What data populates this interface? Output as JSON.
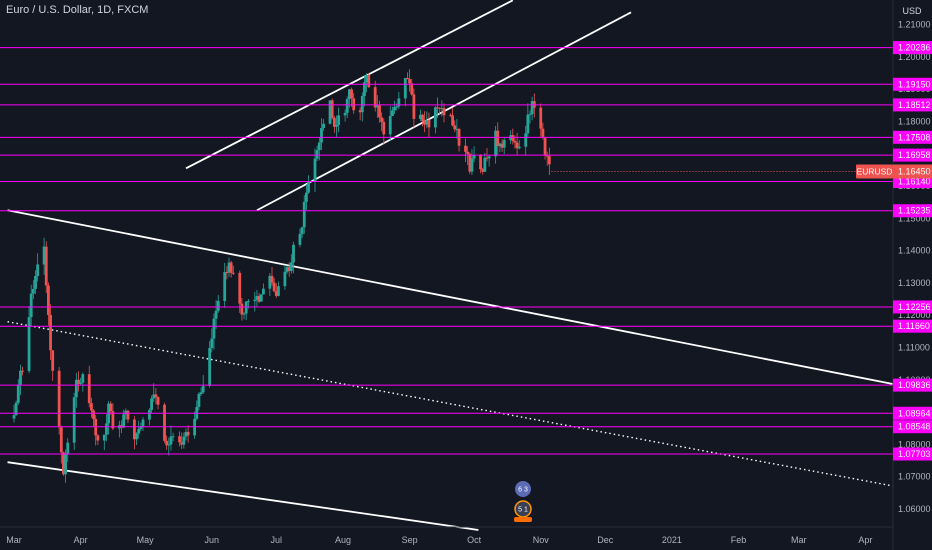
{
  "chart_data": {
    "type": "candlestick",
    "title": "Euro / U.S. Dollar, 1D, FXCM",
    "symbol": "EURUSD",
    "last_price": 1.1645,
    "currency": "USD",
    "ylim": [
      1.0535,
      1.2176
    ],
    "y_ticks": [
      1.21,
      1.2,
      1.19,
      1.18,
      1.17,
      1.16,
      1.15,
      1.14,
      1.13,
      1.12,
      1.11,
      1.1,
      1.09,
      1.08,
      1.07,
      1.06
    ],
    "y_tick_labels": [
      "1.21000",
      "1.20000",
      "1.19000",
      "1.18000",
      "1.17000",
      "1.16000",
      "1.15000",
      "1.14000",
      "1.13000",
      "1.12000",
      "1.11000",
      "1.10000",
      "1.09000",
      "1.08000",
      "1.07000",
      "1.06000"
    ],
    "x_ticks": [
      {
        "label": "Mar",
        "day": 0
      },
      {
        "label": "Apr",
        "day": 31
      },
      {
        "label": "May",
        "day": 61
      },
      {
        "label": "Jun",
        "day": 92
      },
      {
        "label": "Jul",
        "day": 122
      },
      {
        "label": "Aug",
        "day": 153
      },
      {
        "label": "Sep",
        "day": 184
      },
      {
        "label": "Oct",
        "day": 214
      },
      {
        "label": "Nov",
        "day": 245
      },
      {
        "label": "Dec",
        "day": 275
      },
      {
        "label": "2021",
        "day": 306
      },
      {
        "label": "Feb",
        "day": 337
      },
      {
        "label": "Mar",
        "day": 365
      },
      {
        "label": "Apr",
        "day": 396
      }
    ],
    "levels": [
      {
        "value": 1.20286,
        "label": "1.20286"
      },
      {
        "value": 1.1915,
        "label": "1.19150"
      },
      {
        "value": 1.18512,
        "label": "1.18512"
      },
      {
        "value": 1.17508,
        "label": "1.17508"
      },
      {
        "value": 1.16958,
        "label": "1.16958"
      },
      {
        "value": 1.1614,
        "label": "1.16140"
      },
      {
        "value": 1.15235,
        "label": "1.15235"
      },
      {
        "value": 1.12256,
        "label": "1.12256"
      },
      {
        "value": 1.1166,
        "label": "1.11660"
      },
      {
        "value": 1.09836,
        "label": "1.09836"
      },
      {
        "value": 1.08964,
        "label": "1.08964"
      },
      {
        "value": 1.08548,
        "label": "1.08548"
      },
      {
        "value": 1.07703,
        "label": "1.07703"
      }
    ],
    "trendlines": [
      {
        "style": "solid",
        "from": {
          "day": 80,
          "price": 1.1655
        },
        "to": {
          "day": 232,
          "price": 1.2175
        }
      },
      {
        "style": "solid",
        "from": {
          "day": 113,
          "price": 1.1525
        },
        "to": {
          "day": 287,
          "price": 1.2138
        }
      },
      {
        "style": "solid",
        "from": {
          "day": -3,
          "price": 1.1525
        },
        "to": {
          "day": 418,
          "price": 1.0975
        }
      },
      {
        "style": "dotted",
        "from": {
          "day": -3,
          "price": 1.118
        },
        "to": {
          "day": 418,
          "price": 1.066
        }
      },
      {
        "style": "solid",
        "from": {
          "day": -3,
          "price": 1.0745
        },
        "to": {
          "day": 216,
          "price": 1.0535
        }
      }
    ],
    "close_path": [
      [
        0,
        1.088
      ],
      [
        4,
        1.105
      ],
      [
        8,
        1.125
      ],
      [
        12,
        1.14
      ],
      [
        14,
        1.142
      ],
      [
        17,
        1.11
      ],
      [
        21,
        1.085
      ],
      [
        23,
        1.072
      ],
      [
        26,
        1.083
      ],
      [
        29,
        1.098
      ],
      [
        32,
        1.102
      ],
      [
        35,
        1.094
      ],
      [
        38,
        1.085
      ],
      [
        41,
        1.08
      ],
      [
        44,
        1.093
      ],
      [
        46,
        1.087
      ],
      [
        49,
        1.085
      ],
      [
        52,
        1.092
      ],
      [
        56,
        1.08
      ],
      [
        59,
        1.085
      ],
      [
        62,
        1.092
      ],
      [
        66,
        1.095
      ],
      [
        69,
        1.085
      ],
      [
        72,
        1.08
      ],
      [
        76,
        1.083
      ],
      [
        78,
        1.08
      ],
      [
        81,
        1.083
      ],
      [
        84,
        1.09
      ],
      [
        88,
        1.098
      ],
      [
        91,
        1.11
      ],
      [
        94,
        1.123
      ],
      [
        97,
        1.13
      ],
      [
        100,
        1.138
      ],
      [
        102,
        1.132
      ],
      [
        104,
        1.124
      ],
      [
        107,
        1.12
      ],
      [
        109,
        1.125
      ],
      [
        113,
        1.124
      ],
      [
        116,
        1.129
      ],
      [
        119,
        1.13
      ],
      [
        122,
        1.125
      ],
      [
        124,
        1.13
      ],
      [
        127,
        1.133
      ],
      [
        130,
        1.141
      ],
      [
        133,
        1.145
      ],
      [
        136,
        1.158
      ],
      [
        139,
        1.168
      ],
      [
        141,
        1.173
      ],
      [
        144,
        1.178
      ],
      [
        147,
        1.185
      ],
      [
        150,
        1.178
      ],
      [
        153,
        1.183
      ],
      [
        156,
        1.188
      ],
      [
        159,
        1.18
      ],
      [
        161,
        1.185
      ],
      [
        164,
        1.193
      ],
      [
        167,
        1.188
      ],
      [
        170,
        1.182
      ],
      [
        173,
        1.175
      ],
      [
        176,
        1.185
      ],
      [
        180,
        1.186
      ],
      [
        183,
        1.194
      ],
      [
        186,
        1.183
      ],
      [
        189,
        1.182
      ],
      [
        192,
        1.179
      ],
      [
        195,
        1.182
      ],
      [
        198,
        1.184
      ],
      [
        202,
        1.181
      ],
      [
        205,
        1.178
      ],
      [
        207,
        1.174
      ],
      [
        210,
        1.17
      ],
      [
        212,
        1.166
      ],
      [
        215,
        1.17
      ],
      [
        218,
        1.165
      ],
      [
        221,
        1.17
      ],
      [
        224,
        1.175
      ],
      [
        227,
        1.173
      ],
      [
        230,
        1.176
      ],
      [
        233,
        1.172
      ],
      [
        235,
        1.17
      ],
      [
        238,
        1.178
      ],
      [
        241,
        1.186
      ],
      [
        244,
        1.184
      ],
      [
        246,
        1.175
      ],
      [
        249,
        1.165
      ],
      [
        250,
        1.1645
      ]
    ],
    "grid": false,
    "legend": "none",
    "colors": {
      "background": "#131722",
      "up": "#26a69a",
      "down": "#ef5350",
      "level": "#ff00ff",
      "trendline": "#ffffff",
      "last_price": "#ef5350"
    },
    "badges": [
      "6 3",
      "5 1"
    ]
  }
}
